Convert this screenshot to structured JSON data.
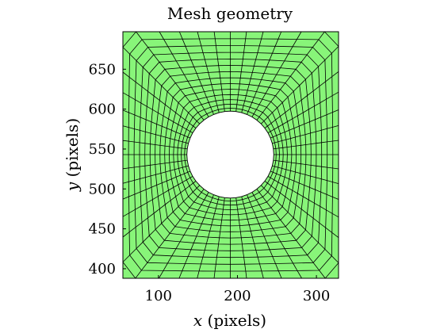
{
  "chart_data": {
    "type": "mesh",
    "title": "Mesh geometry",
    "xlabel_var": "x",
    "xlabel_unit": " (pixels)",
    "ylabel_var": "y",
    "ylabel_unit": " (pixels)",
    "xlim": [
      55,
      328
    ],
    "ylim": [
      388,
      697
    ],
    "xticks": [
      100,
      200,
      300
    ],
    "yticks": [
      400,
      450,
      500,
      550,
      600,
      650
    ],
    "hole": {
      "center": [
        191,
        543
      ],
      "radius": 55
    },
    "mesh": {
      "n_perimeter": 48,
      "n_layers": 14
    },
    "colors": {
      "fill": "#88f579",
      "edge": "#000000",
      "hole": "#ffffff"
    }
  }
}
